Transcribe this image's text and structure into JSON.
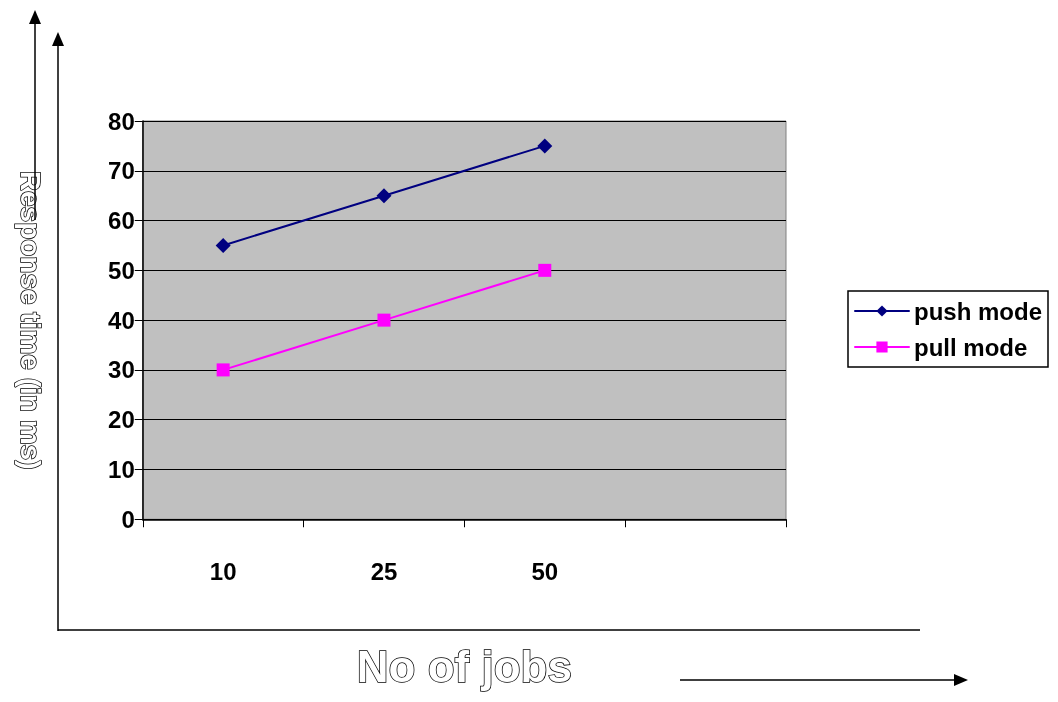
{
  "chart_data": {
    "type": "line",
    "xlabel": "No of jobs",
    "ylabel": "Response time (in ms)",
    "categories": [
      "10",
      "25",
      "50",
      null
    ],
    "series": [
      {
        "name": "push mode",
        "color": "#000080",
        "marker": "diamond",
        "values": [
          55,
          65,
          75,
          null
        ]
      },
      {
        "name": "pull mode",
        "color": "#ff00ff",
        "marker": "square",
        "values": [
          30,
          40,
          50,
          null
        ]
      }
    ],
    "ylim": [
      0,
      80
    ],
    "yticks": [
      0,
      10,
      20,
      30,
      40,
      50,
      60,
      70,
      80
    ],
    "grid": "y",
    "legend": "right",
    "line_style": "solid"
  }
}
